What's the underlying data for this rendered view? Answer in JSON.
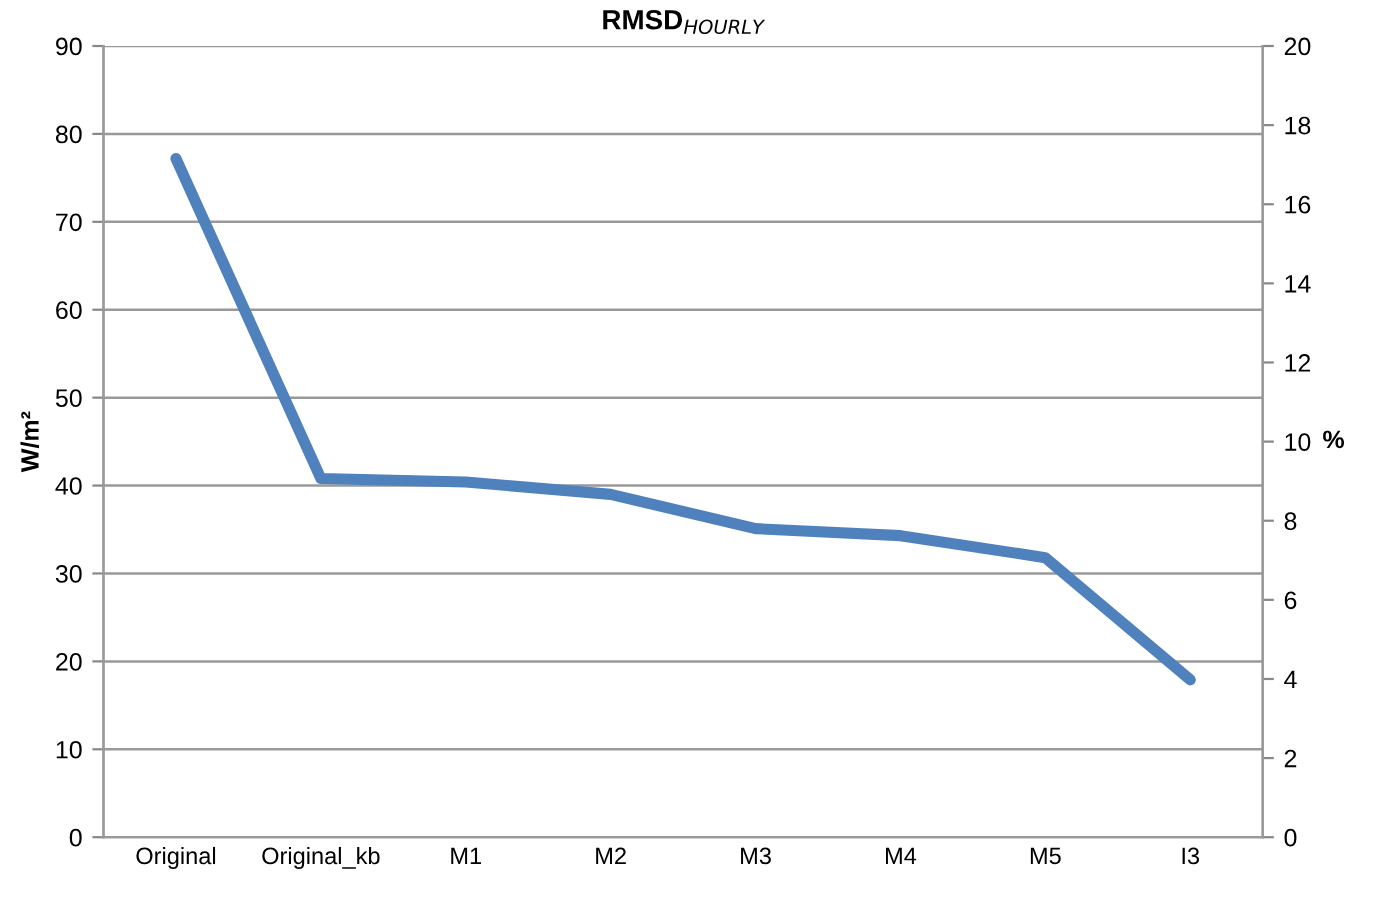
{
  "chart_data": {
    "type": "line",
    "title": "RMSD$_{HOURLY}$",
    "ylabel": "W/m²",
    "y2label": "%",
    "categories": [
      "Original",
      "Original_kb",
      "M1",
      "M2",
      "M3",
      "M4",
      "M5",
      "I3"
    ],
    "series": [
      {
        "color": "#4f81bd",
        "values": [
          77.2,
          40.8,
          40.4,
          39.0,
          35.1,
          34.3,
          31.8,
          17.9
        ]
      }
    ],
    "ylim": [
      0,
      90
    ],
    "yticks": [
      0,
      10,
      20,
      30,
      40,
      50,
      60,
      70,
      80,
      90
    ],
    "y2lim": [
      0,
      20
    ],
    "y2ticks": [
      0,
      2,
      4,
      6,
      8,
      10,
      12,
      14,
      16,
      18,
      20
    ],
    "grid": "y",
    "marker": "none",
    "line_style": "solid"
  }
}
